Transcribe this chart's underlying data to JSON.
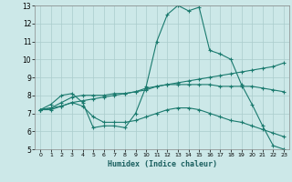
{
  "xlabel": "Humidex (Indice chaleur)",
  "bg_color": "#cce8e8",
  "grid_color": "#aacccc",
  "line_color": "#1a7a6e",
  "xlim": [
    -0.5,
    23.5
  ],
  "ylim": [
    5,
    13
  ],
  "xticks": [
    0,
    1,
    2,
    3,
    4,
    5,
    6,
    7,
    8,
    9,
    10,
    11,
    12,
    13,
    14,
    15,
    16,
    17,
    18,
    19,
    20,
    21,
    22,
    23
  ],
  "yticks": [
    5,
    6,
    7,
    8,
    9,
    10,
    11,
    12,
    13
  ],
  "series": [
    {
      "x": [
        0,
        1,
        2,
        3,
        4,
        5,
        6,
        7,
        8,
        9,
        10,
        11,
        12,
        13,
        14,
        15,
        16,
        17,
        18,
        19,
        20,
        21,
        22,
        23
      ],
      "y": [
        7.2,
        7.5,
        8.0,
        8.1,
        7.6,
        6.2,
        6.3,
        6.3,
        6.2,
        7.0,
        8.5,
        11.0,
        12.5,
        13.0,
        12.7,
        12.9,
        10.5,
        10.3,
        10.0,
        8.6,
        7.5,
        6.3,
        5.2,
        5.0
      ]
    },
    {
      "x": [
        0,
        1,
        2,
        3,
        4,
        5,
        6,
        7,
        8,
        9,
        10,
        11,
        12,
        13,
        14,
        15,
        16,
        17,
        18,
        19,
        20,
        21,
        22,
        23
      ],
      "y": [
        7.2,
        7.3,
        7.4,
        7.6,
        7.7,
        7.8,
        7.9,
        8.0,
        8.1,
        8.2,
        8.3,
        8.5,
        8.6,
        8.7,
        8.8,
        8.9,
        9.0,
        9.1,
        9.2,
        9.3,
        9.4,
        9.5,
        9.6,
        9.8
      ]
    },
    {
      "x": [
        0,
        1,
        2,
        3,
        4,
        5,
        6,
        7,
        8,
        9,
        10,
        11,
        12,
        13,
        14,
        15,
        16,
        17,
        18,
        19,
        20,
        21,
        22,
        23
      ],
      "y": [
        7.2,
        7.3,
        7.6,
        7.9,
        8.0,
        8.0,
        8.0,
        8.1,
        8.1,
        8.2,
        8.4,
        8.5,
        8.6,
        8.6,
        8.6,
        8.6,
        8.6,
        8.5,
        8.5,
        8.5,
        8.5,
        8.4,
        8.3,
        8.2
      ]
    },
    {
      "x": [
        0,
        1,
        2,
        3,
        4,
        5,
        6,
        7,
        8,
        9,
        10,
        11,
        12,
        13,
        14,
        15,
        16,
        17,
        18,
        19,
        20,
        21,
        22,
        23
      ],
      "y": [
        7.2,
        7.2,
        7.4,
        7.6,
        7.4,
        6.8,
        6.5,
        6.5,
        6.5,
        6.6,
        6.8,
        7.0,
        7.2,
        7.3,
        7.3,
        7.2,
        7.0,
        6.8,
        6.6,
        6.5,
        6.3,
        6.1,
        5.9,
        5.7
      ]
    }
  ]
}
